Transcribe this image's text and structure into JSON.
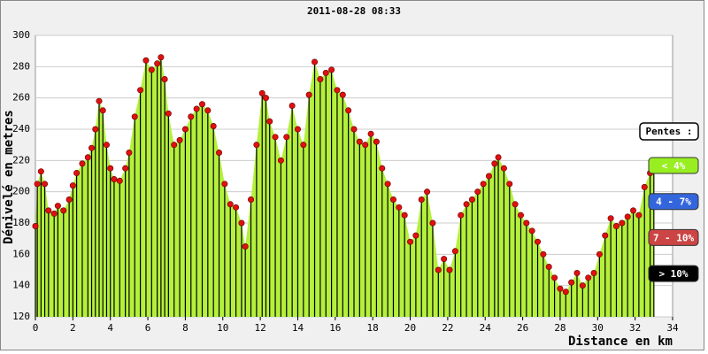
{
  "chart_data": {
    "type": "area",
    "title": "2011-08-28 08:33",
    "xlabel": "Distance en km",
    "ylabel": "Dénivelé en metres",
    "x": [
      0,
      0.1,
      0.3,
      0.5,
      0.7,
      1,
      1.2,
      1.5,
      1.8,
      2,
      2.2,
      2.5,
      2.8,
      3,
      3.2,
      3.4,
      3.6,
      3.8,
      4,
      4.2,
      4.5,
      4.8,
      5,
      5.3,
      5.6,
      5.9,
      6.2,
      6.5,
      6.7,
      6.9,
      7.1,
      7.4,
      7.7,
      8,
      8.3,
      8.6,
      8.9,
      9.2,
      9.5,
      9.8,
      10.1,
      10.4,
      10.7,
      11,
      11.2,
      11.5,
      11.8,
      12.1,
      12.3,
      12.5,
      12.8,
      13.1,
      13.4,
      13.7,
      14,
      14.3,
      14.6,
      14.9,
      15.2,
      15.5,
      15.8,
      16.1,
      16.4,
      16.7,
      17,
      17.3,
      17.6,
      17.9,
      18.2,
      18.5,
      18.8,
      19.1,
      19.4,
      19.7,
      20,
      20.3,
      20.6,
      20.9,
      21.2,
      21.5,
      21.8,
      22.1,
      22.4,
      22.7,
      23,
      23.3,
      23.6,
      23.9,
      24.2,
      24.5,
      24.7,
      25,
      25.3,
      25.6,
      25.9,
      26.2,
      26.5,
      26.8,
      27.1,
      27.4,
      27.7,
      28,
      28.3,
      28.6,
      28.9,
      29.2,
      29.5,
      29.8,
      30.1,
      30.4,
      30.7,
      31,
      31.3,
      31.6,
      31.9,
      32.2,
      32.5,
      32.8,
      33
    ],
    "series": [
      {
        "color": "#b4f03c",
        "marker_color": "#e01010",
        "values": [
          178,
          205,
          213,
          205,
          188,
          186,
          191,
          188,
          195,
          204,
          212,
          218,
          222,
          228,
          240,
          258,
          252,
          230,
          215,
          208,
          207,
          215,
          225,
          248,
          265,
          284,
          278,
          282,
          286,
          272,
          250,
          230,
          233,
          240,
          248,
          253,
          256,
          252,
          242,
          225,
          205,
          192,
          190,
          180,
          165,
          195,
          230,
          263,
          260,
          245,
          235,
          220,
          235,
          255,
          240,
          230,
          262,
          283,
          272,
          276,
          278,
          265,
          262,
          252,
          240,
          232,
          230,
          237,
          232,
          215,
          205,
          195,
          190,
          185,
          168,
          172,
          195,
          200,
          180,
          150,
          157,
          150,
          162,
          185,
          192,
          195,
          200,
          205,
          210,
          218,
          222,
          215,
          205,
          192,
          185,
          180,
          175,
          168,
          160,
          152,
          145,
          138,
          136,
          142,
          148,
          140,
          145,
          148,
          160,
          172,
          183,
          178,
          180,
          184,
          188,
          185,
          203,
          212,
          215
        ]
      }
    ],
    "xlim": [
      0,
      34
    ],
    "ylim": [
      120,
      300
    ],
    "xticks": [
      0,
      2,
      4,
      6,
      8,
      10,
      12,
      14,
      16,
      18,
      20,
      22,
      24,
      26,
      28,
      30,
      32,
      34
    ],
    "yticks": [
      120,
      140,
      160,
      180,
      200,
      220,
      240,
      260,
      280,
      300
    ],
    "grid": true,
    "legend": {
      "title": "Pentes :",
      "entries": [
        {
          "label": "< 4%",
          "color": "#99ee22"
        },
        {
          "label": "4 - 7%",
          "color": "#3366dd"
        },
        {
          "label": "7 - 10%",
          "color": "#cc4444"
        },
        {
          "label": "> 10%",
          "color": "#000000"
        }
      ]
    }
  }
}
